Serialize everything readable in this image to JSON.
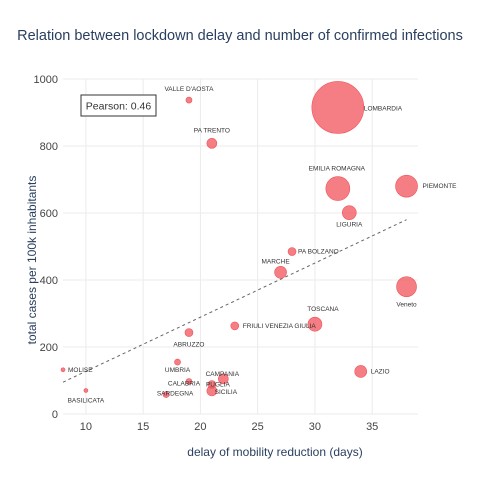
{
  "chart_data": {
    "type": "scatter",
    "title": "Relation between lockdown delay and number of confirmed infections",
    "xlabel": "delay of mobility reduction (days)",
    "ylabel": "total cases per 100k inhabitants",
    "xlim": [
      8,
      39
    ],
    "ylim": [
      0,
      1000
    ],
    "x_ticks": [
      "10",
      "15",
      "20",
      "25",
      "30",
      "35"
    ],
    "y_ticks": [
      "0",
      "200",
      "400",
      "600",
      "800",
      "1000"
    ],
    "grid": true,
    "marker_color": "#f0535a",
    "annotation": "Pearson: 0.46",
    "trendline": {
      "x": [
        8,
        38
      ],
      "y": [
        95,
        580
      ],
      "style": "dashed"
    },
    "points": [
      {
        "name": "VALLE D'AOSTA",
        "x": 19,
        "y": 937,
        "size": 3
      },
      {
        "name": "LOMBARDIA",
        "x": 32,
        "y": 915,
        "size": 26
      },
      {
        "name": "PA TRENTO",
        "x": 21,
        "y": 808,
        "size": 5
      },
      {
        "name": "EMILIA ROMAGNA",
        "x": 32,
        "y": 673,
        "size": 12
      },
      {
        "name": "PIEMONTE",
        "x": 38,
        "y": 680,
        "size": 11
      },
      {
        "name": "LIGURIA",
        "x": 33,
        "y": 601,
        "size": 7
      },
      {
        "name": "PA BOLZANO",
        "x": 28,
        "y": 485,
        "size": 4
      },
      {
        "name": "MARCHE",
        "x": 27,
        "y": 423,
        "size": 6
      },
      {
        "name": "Veneto",
        "x": 38,
        "y": 380,
        "size": 10
      },
      {
        "name": "TOSCANA",
        "x": 30,
        "y": 268,
        "size": 7
      },
      {
        "name": "FRIULI VENEZIA GIULIA",
        "x": 23,
        "y": 263,
        "size": 4
      },
      {
        "name": "ABRUZZO",
        "x": 19,
        "y": 243,
        "size": 4
      },
      {
        "name": "UMBRIA",
        "x": 18,
        "y": 155,
        "size": 3
      },
      {
        "name": "MOLISE",
        "x": 8,
        "y": 132,
        "size": 2
      },
      {
        "name": "LAZIO",
        "x": 34,
        "y": 127,
        "size": 6
      },
      {
        "name": "CAMPANIA",
        "x": 22,
        "y": 105,
        "size": 5
      },
      {
        "name": "PUGLIA",
        "x": 21,
        "y": 88,
        "size": 4
      },
      {
        "name": "CALABRIA",
        "x": 19,
        "y": 97,
        "size": 3
      },
      {
        "name": "SARDEGNA",
        "x": 17,
        "y": 58,
        "size": 3
      },
      {
        "name": "SICILIA",
        "x": 21,
        "y": 69,
        "size": 5
      },
      {
        "name": "BASILICATA",
        "x": 10,
        "y": 70,
        "size": 2
      }
    ],
    "label_offsets": {
      "VALLE D'AOSTA": [
        "middle",
        0,
        -9
      ],
      "LOMBARDIA": [
        "start",
        26,
        3
      ],
      "PA TRENTO": [
        "middle",
        0,
        -11
      ],
      "EMILIA ROMAGNA": [
        "middle",
        -1,
        -18
      ],
      "PIEMONTE": [
        "start",
        16,
        2
      ],
      "LIGURIA": [
        "middle",
        0,
        14
      ],
      "PA BOLZANO": [
        "start",
        6,
        2
      ],
      "MARCHE": [
        "middle",
        -5,
        -9
      ],
      "Veneto": [
        "middle",
        0,
        20
      ],
      "TOSCANA": [
        "middle",
        8,
        -13
      ],
      "FRIULI VENEZIA GIULIA": [
        "start",
        8,
        2
      ],
      "ABRUZZO": [
        "middle",
        0,
        14
      ],
      "UMBRIA": [
        "middle",
        0,
        10
      ],
      "MOLISE": [
        "start",
        5,
        2
      ],
      "LAZIO": [
        "start",
        10,
        2
      ],
      "CAMPANIA": [
        "middle",
        -1,
        -3
      ],
      "PUGLIA": [
        "middle",
        6,
        2
      ],
      "CALABRIA": [
        "middle",
        -5,
        4
      ],
      "SARDEGNA": [
        "middle",
        9,
        1
      ],
      "SICILIA": [
        "middle",
        14,
        3
      ],
      "BASILICATA": [
        "middle",
        0,
        12
      ]
    }
  }
}
